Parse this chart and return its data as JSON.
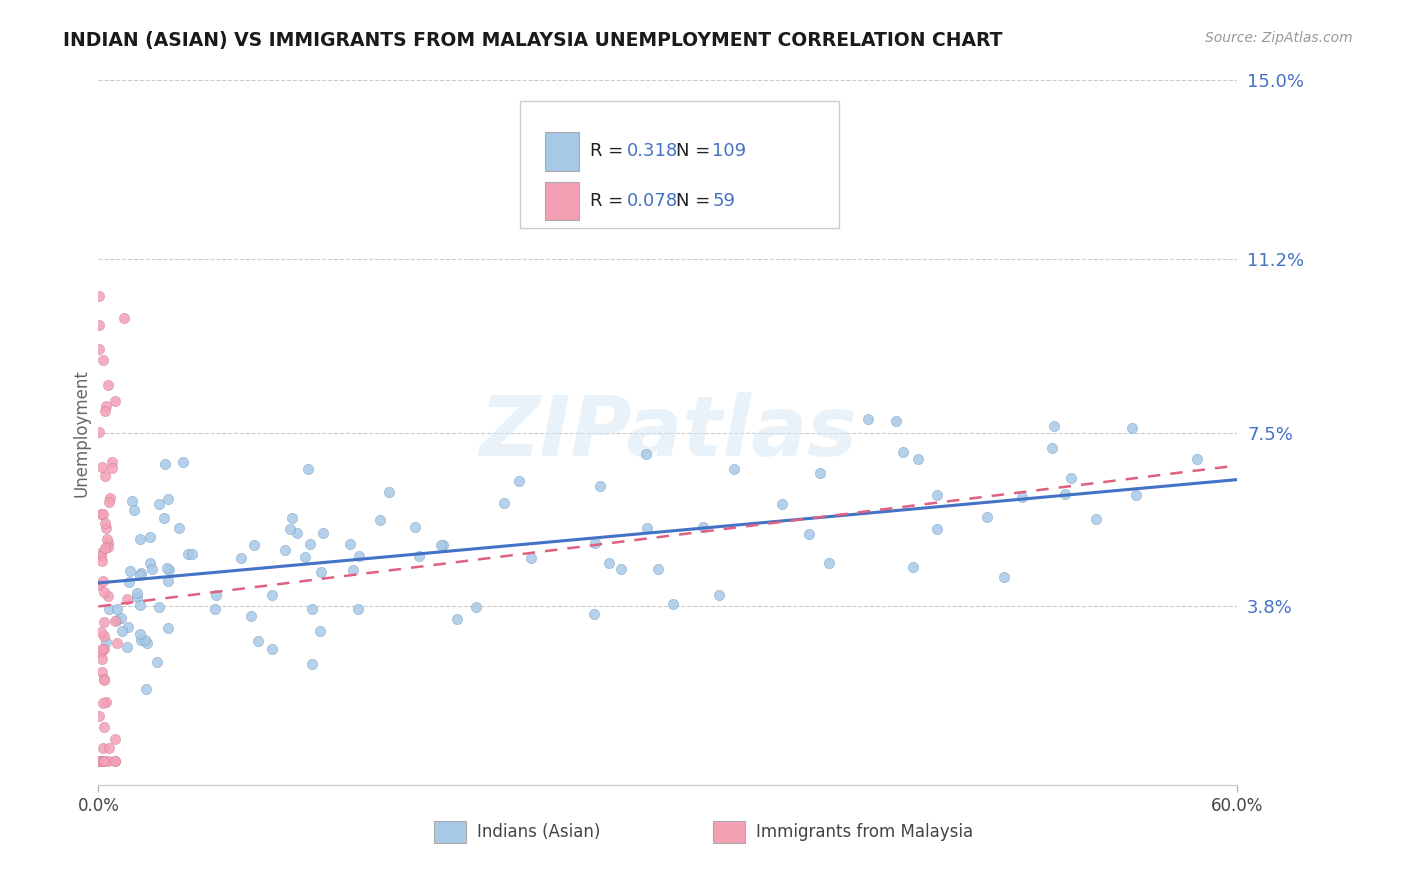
{
  "title": "INDIAN (ASIAN) VS IMMIGRANTS FROM MALAYSIA UNEMPLOYMENT CORRELATION CHART",
  "source_text": "Source: ZipAtlas.com",
  "ylabel": "Unemployment",
  "xlim": [
    0.0,
    0.6
  ],
  "ylim": [
    0.0,
    0.15
  ],
  "yticks": [
    0.038,
    0.075,
    0.112,
    0.15
  ],
  "ytick_labels": [
    "3.8%",
    "7.5%",
    "11.2%",
    "15.0%"
  ],
  "xtick_labels": [
    "0.0%",
    "60.0%"
  ],
  "color_blue": "#A8C8E8",
  "color_pink": "#F4A0B4",
  "color_blue_line": "#4472C4",
  "color_pink_line": "#E06080",
  "color_ytick": "#4472C4",
  "color_grid": "#CCCCCC",
  "watermark": "ZIPatlas",
  "background_color": "#FFFFFF",
  "legend_r1": "0.318",
  "legend_n1": "109",
  "legend_r2": "0.078",
  "legend_n2": "59",
  "blue_trend_x0": 0.0,
  "blue_trend_y0": 0.043,
  "blue_trend_x1": 0.6,
  "blue_trend_y1": 0.065,
  "pink_trend_x0": 0.0,
  "pink_trend_y0": 0.038,
  "pink_trend_x1": 0.6,
  "pink_trend_y1": 0.068
}
